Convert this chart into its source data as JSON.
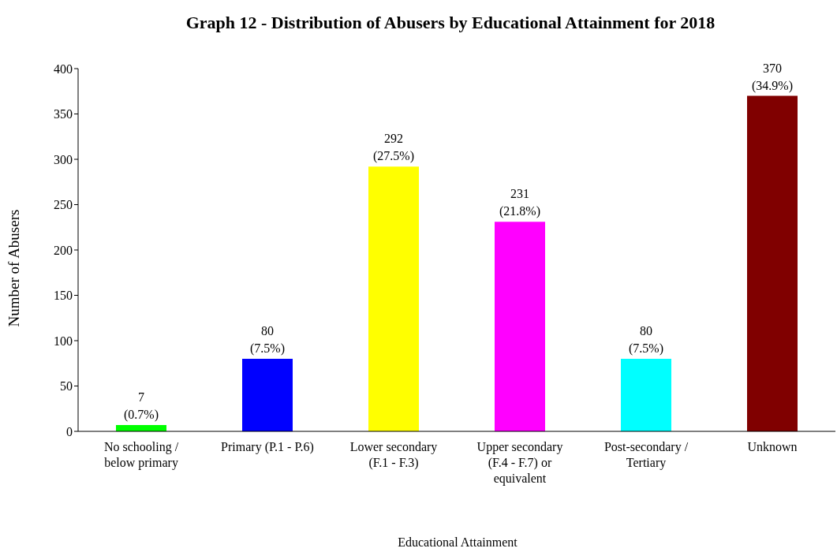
{
  "chart_data": {
    "type": "bar",
    "title": "Graph 12 - Distribution of Abusers by Educational Attainment for 2018",
    "xlabel": "Educational Attainment",
    "ylabel": "Number of Abusers",
    "categories": [
      "No schooling / below primary",
      "Primary (P.1 - P.6)",
      "Lower secondary (F.1 - F.3)",
      "Upper secondary (F.4 - F.7) or equivalent",
      "Post-secondary / Tertiary",
      "Unknown"
    ],
    "values": [
      7,
      80,
      292,
      231,
      80,
      370
    ],
    "colors": [
      "#00ff00",
      "#0000ff",
      "#ffff00",
      "#ff00ff",
      "#00ffff",
      "#800000"
    ],
    "value_labels": [
      "7\n(0.7%)",
      "80\n(7.5%)",
      "292\n(27.5%)",
      "231\n(21.8%)",
      "80\n(7.5%)",
      "370\n(34.9%)"
    ],
    "ylim": [
      0,
      400
    ],
    "yticks": [
      0,
      50,
      100,
      150,
      200,
      250,
      300,
      350,
      400
    ],
    "grid": false,
    "legend": false
  }
}
